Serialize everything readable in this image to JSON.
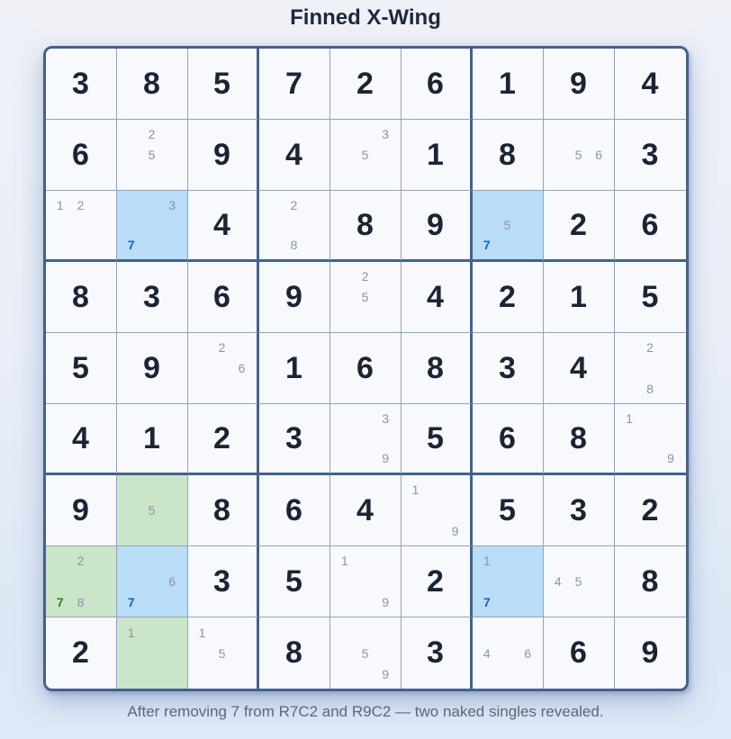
{
  "title": "Finned X-Wing",
  "caption": "After removing 7 from R7C2 and R9C2 — two naked singles revealed.",
  "colors": {
    "highlight_blue": "#b9dcf7",
    "highlight_green": "#cbe5c9",
    "digit_blue": "#1565c0",
    "digit_green": "#2e7d32",
    "given": "#1c2434",
    "candidate": "#8b95a5",
    "box_border": "#456189",
    "cell_border": "#90a4bd",
    "cell_bg": "#f7f9fc",
    "caption_color": "#5c6878",
    "title_color": "#1e293b"
  },
  "grid": {
    "rows": [
      [
        {
          "v": "3"
        },
        {
          "v": "8"
        },
        {
          "v": "5"
        },
        {
          "v": "7"
        },
        {
          "v": "2"
        },
        {
          "v": "6"
        },
        {
          "v": "1"
        },
        {
          "v": "9"
        },
        {
          "v": "4"
        }
      ],
      [
        {
          "v": "6"
        },
        {
          "c": [
            [
              2,
              ""
            ],
            [
              5,
              ""
            ]
          ]
        },
        {
          "v": "9"
        },
        {
          "v": "4"
        },
        {
          "c": [
            [
              3,
              ""
            ],
            [
              5,
              ""
            ]
          ]
        },
        {
          "v": "1"
        },
        {
          "v": "8"
        },
        {
          "c": [
            [
              5,
              ""
            ],
            [
              6,
              ""
            ]
          ]
        },
        {
          "v": "3"
        }
      ],
      [
        {
          "c": [
            [
              1,
              ""
            ],
            [
              2,
              ""
            ]
          ]
        },
        {
          "bg": "blue",
          "c": [
            [
              3,
              ""
            ],
            [
              7,
              "b"
            ]
          ]
        },
        {
          "v": "4"
        },
        {
          "c": [
            [
              2,
              ""
            ],
            [
              8,
              ""
            ]
          ]
        },
        {
          "v": "8"
        },
        {
          "v": "9"
        },
        {
          "bg": "blue",
          "c": [
            [
              5,
              ""
            ],
            [
              7,
              "b"
            ]
          ]
        },
        {
          "v": "2"
        },
        {
          "v": "6"
        }
      ],
      [
        {
          "v": "8"
        },
        {
          "v": "3"
        },
        {
          "v": "6"
        },
        {
          "v": "9"
        },
        {
          "c": [
            [
              2,
              ""
            ],
            [
              5,
              ""
            ]
          ]
        },
        {
          "v": "4"
        },
        {
          "v": "2"
        },
        {
          "v": "1"
        },
        {
          "v": "5"
        }
      ],
      [
        {
          "v": "5"
        },
        {
          "v": "9"
        },
        {
          "c": [
            [
              2,
              ""
            ],
            [
              6,
              ""
            ]
          ]
        },
        {
          "v": "1"
        },
        {
          "v": "6"
        },
        {
          "v": "8"
        },
        {
          "v": "3"
        },
        {
          "v": "4"
        },
        {
          "c": [
            [
              2,
              ""
            ],
            [
              8,
              ""
            ]
          ]
        }
      ],
      [
        {
          "v": "4"
        },
        {
          "v": "1"
        },
        {
          "v": "2"
        },
        {
          "v": "3"
        },
        {
          "c": [
            [
              3,
              ""
            ],
            [
              9,
              ""
            ]
          ]
        },
        {
          "v": "5"
        },
        {
          "v": "6"
        },
        {
          "v": "8"
        },
        {
          "c": [
            [
              1,
              ""
            ],
            [
              9,
              ""
            ]
          ]
        }
      ],
      [
        {
          "v": "9"
        },
        {
          "bg": "green",
          "c": [
            [
              5,
              ""
            ]
          ]
        },
        {
          "v": "8"
        },
        {
          "v": "6"
        },
        {
          "v": "4"
        },
        {
          "c": [
            [
              1,
              ""
            ],
            [
              9,
              ""
            ]
          ]
        },
        {
          "v": "5"
        },
        {
          "v": "3"
        },
        {
          "v": "2"
        }
      ],
      [
        {
          "bg": "green",
          "c": [
            [
              2,
              ""
            ],
            [
              7,
              "g"
            ],
            [
              8,
              ""
            ]
          ]
        },
        {
          "bg": "blue",
          "c": [
            [
              6,
              ""
            ],
            [
              7,
              "b"
            ]
          ]
        },
        {
          "v": "3"
        },
        {
          "v": "5"
        },
        {
          "c": [
            [
              1,
              ""
            ],
            [
              9,
              ""
            ]
          ]
        },
        {
          "v": "2"
        },
        {
          "bg": "blue",
          "c": [
            [
              1,
              ""
            ],
            [
              7,
              "b"
            ]
          ]
        },
        {
          "c": [
            [
              4,
              ""
            ],
            [
              5,
              ""
            ]
          ]
        },
        {
          "v": "8"
        }
      ],
      [
        {
          "v": "2"
        },
        {
          "bg": "green",
          "c": [
            [
              1,
              ""
            ]
          ]
        },
        {
          "c": [
            [
              1,
              ""
            ],
            [
              5,
              ""
            ]
          ]
        },
        {
          "v": "8"
        },
        {
          "c": [
            [
              5,
              ""
            ],
            [
              9,
              ""
            ]
          ]
        },
        {
          "v": "3"
        },
        {
          "c": [
            [
              4,
              ""
            ],
            [
              6,
              ""
            ]
          ]
        },
        {
          "v": "6"
        },
        {
          "v": "9"
        }
      ]
    ]
  }
}
